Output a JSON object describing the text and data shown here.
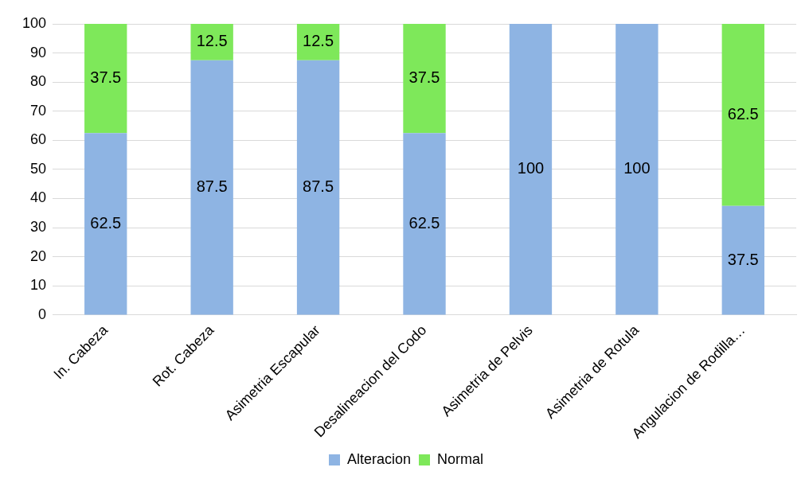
{
  "chart_data": {
    "type": "bar",
    "stacked": true,
    "categories": [
      "In. Cabeza",
      "Rot. Cabeza",
      "Asimetria Escapular",
      "Desalineacion del Codo",
      "Asimetria de Pelvis",
      "Asimetria de Rotula",
      "Angulacion de Rodilla…"
    ],
    "series": [
      {
        "name": "Alteracion",
        "color": "#8eb4e3",
        "values": [
          62.5,
          87.5,
          87.5,
          62.5,
          100,
          100,
          37.5
        ],
        "value_labels": [
          "62.5",
          "87.5",
          "87.5",
          "62.5",
          "100",
          "100",
          "37.5"
        ]
      },
      {
        "name": "Normal",
        "color": "#7ee85a",
        "values": [
          37.5,
          12.5,
          12.5,
          37.5,
          0,
          0,
          62.5
        ],
        "value_labels": [
          "37.5",
          "12.5",
          "12.5",
          "37.5",
          null,
          null,
          "62.5"
        ]
      }
    ],
    "ylim": [
      0,
      100
    ],
    "yticks": [
      0,
      10,
      20,
      30,
      40,
      50,
      60,
      70,
      80,
      90,
      100
    ],
    "grid": "y",
    "legend": "bottom"
  }
}
